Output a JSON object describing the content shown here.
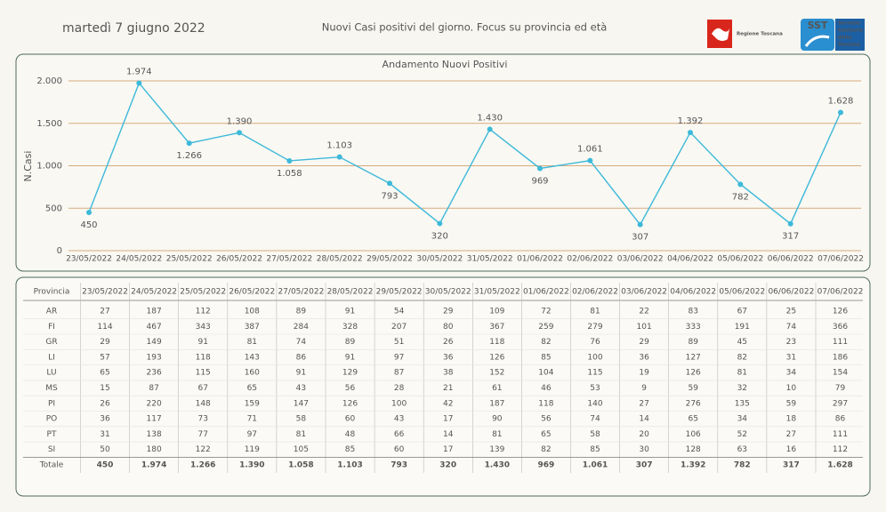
{
  "header": {
    "date": "martedì 7 giugno 2022",
    "title": "Nuovi Casi positivi del giorno. Focus su provincia ed età",
    "logos": {
      "region": "Regione Toscana",
      "sst": "SST",
      "sst_name": [
        "Servizio",
        "Sanitario",
        "della",
        "Toscana"
      ]
    }
  },
  "chart_data": {
    "type": "line",
    "title": "Andamento Nuovi Positivi",
    "y_label": "N.Casi",
    "categories": [
      "23/05/2022",
      "24/05/2022",
      "25/05/2022",
      "26/05/2022",
      "27/05/2022",
      "28/05/2022",
      "29/05/2022",
      "30/05/2022",
      "31/05/2022",
      "01/06/2022",
      "02/06/2022",
      "03/06/2022",
      "04/06/2022",
      "05/06/2022",
      "06/06/2022",
      "07/06/2022"
    ],
    "values": [
      450,
      1974,
      1266,
      1390,
      1058,
      1103,
      793,
      320,
      1430,
      969,
      1061,
      307,
      1392,
      782,
      317,
      1628
    ],
    "value_labels": [
      "450",
      "1.974",
      "1.266",
      "1.390",
      "1.058",
      "1.103",
      "793",
      "320",
      "1.430",
      "969",
      "1.061",
      "307",
      "1.392",
      "782",
      "317",
      "1.628"
    ],
    "color": "#3db9d9",
    "grid": true,
    "grid_color": "#d9aa7c",
    "ylim": [
      0,
      2000
    ],
    "yticks": [
      0,
      500,
      {
        "value": 1000,
        "label": "1.000"
      },
      {
        "value": 1500,
        "label": "1.500"
      },
      {
        "value": 2000,
        "label": "2.000"
      }
    ]
  },
  "table": {
    "header": [
      "Provincia",
      "23/05/2022",
      "24/05/2022",
      "25/05/2022",
      "26/05/2022",
      "27/05/2022",
      "28/05/2022",
      "29/05/2022",
      "30/05/2022",
      "31/05/2022",
      "01/06/2022",
      "02/06/2022",
      "03/06/2022",
      "04/06/2022",
      "05/06/2022",
      "06/06/2022",
      "07/06/2022"
    ],
    "rows": [
      [
        "AR",
        27,
        187,
        112,
        108,
        89,
        91,
        54,
        29,
        109,
        72,
        81,
        22,
        83,
        67,
        25,
        126
      ],
      [
        "FI",
        114,
        467,
        343,
        387,
        284,
        328,
        207,
        80,
        367,
        259,
        279,
        101,
        333,
        191,
        74,
        366
      ],
      [
        "GR",
        29,
        149,
        91,
        81,
        74,
        89,
        51,
        26,
        118,
        82,
        76,
        29,
        89,
        45,
        23,
        111
      ],
      [
        "LI",
        57,
        193,
        118,
        143,
        86,
        91,
        97,
        36,
        126,
        85,
        100,
        36,
        127,
        82,
        31,
        186
      ],
      [
        "LU",
        65,
        236,
        115,
        160,
        91,
        129,
        87,
        38,
        152,
        104,
        115,
        19,
        126,
        81,
        34,
        154
      ],
      [
        "MS",
        15,
        87,
        67,
        65,
        43,
        56,
        28,
        21,
        61,
        46,
        53,
        9,
        59,
        32,
        10,
        79
      ],
      [
        "PI",
        26,
        220,
        148,
        159,
        147,
        126,
        100,
        42,
        187,
        118,
        140,
        27,
        276,
        135,
        59,
        297
      ],
      [
        "PO",
        36,
        117,
        73,
        71,
        58,
        60,
        43,
        17,
        90,
        56,
        74,
        14,
        65,
        34,
        18,
        86
      ],
      [
        "PT",
        31,
        138,
        77,
        97,
        81,
        48,
        66,
        14,
        81,
        65,
        58,
        20,
        106,
        52,
        27,
        111
      ],
      [
        "SI",
        50,
        180,
        122,
        119,
        105,
        85,
        60,
        17,
        139,
        82,
        85,
        30,
        128,
        63,
        16,
        112
      ],
      [
        "Totale",
        450,
        "1.974",
        "1.266",
        "1.390",
        "1.058",
        "1.103",
        793,
        320,
        "1.430",
        969,
        "1.061",
        307,
        "1.392",
        782,
        317,
        "1.628"
      ]
    ]
  }
}
